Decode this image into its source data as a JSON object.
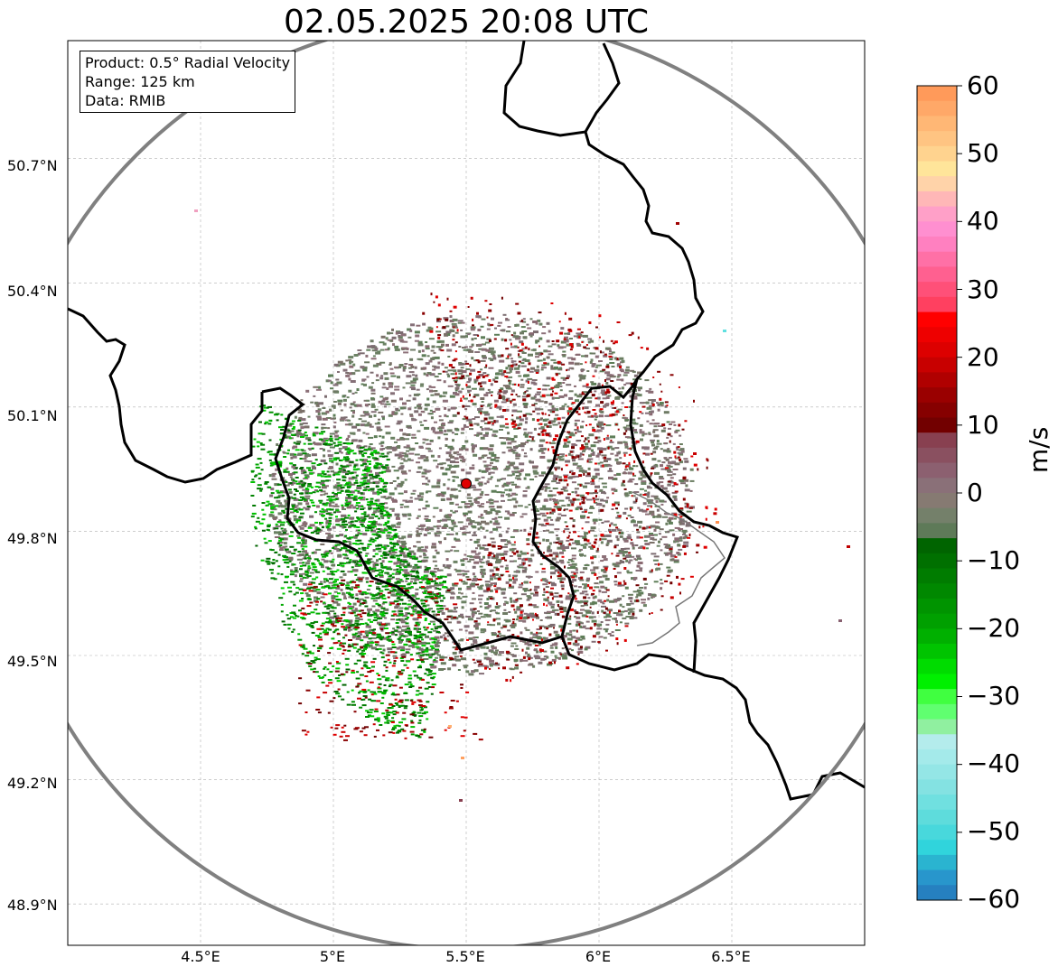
{
  "title": "02.05.2025 20:08 UTC",
  "info": {
    "product": "Product: 0.5° Radial Velocity",
    "range": "Range: 125 km",
    "data": "Data: RMIB"
  },
  "map": {
    "lat_ticks": [
      "50.7°N",
      "50.4°N",
      "50.1°N",
      "49.8°N",
      "49.5°N",
      "49.2°N",
      "48.9°N"
    ],
    "lon_ticks": [
      "4.5°E",
      "5°E",
      "5.5°E",
      "6°E",
      "6.5°E"
    ],
    "radar_site": {
      "lon": 5.5,
      "lat": 49.915
    },
    "radar_range_km": 125,
    "extent": {
      "lon_min": 4.0,
      "lon_max": 7.0,
      "lat_min": 48.8,
      "lat_max": 50.985
    }
  },
  "colorbar": {
    "unit": "m/s",
    "tick_labels": [
      "60",
      "50",
      "40",
      "30",
      "20",
      "10",
      "0",
      "−10",
      "−20",
      "−30",
      "−40",
      "−50",
      "−60"
    ],
    "min": -60,
    "max": 60,
    "colors_top_to_bottom": [
      "#ff9a5a",
      "#ffa868",
      "#ffb775",
      "#ffc482",
      "#ffd38f",
      "#ffe59a",
      "#ffd3a9",
      "#ffb7b7",
      "#ffa0c8",
      "#ff8fd0",
      "#ff80c0",
      "#ff70a6",
      "#ff6090",
      "#ff5078",
      "#ff4060",
      "#ff0000",
      "#ee0000",
      "#dd0000",
      "#c80000",
      "#b00000",
      "#9a0000",
      "#860000",
      "#720000",
      "#884050",
      "#8a5060",
      "#8c6070",
      "#8a7078",
      "#867a72",
      "#74806a",
      "#5e7a58",
      "#006400",
      "#007000",
      "#007c00",
      "#008800",
      "#009400",
      "#00a000",
      "#00b000",
      "#00c400",
      "#00dc00",
      "#00f000",
      "#40ff40",
      "#60ff70",
      "#90f0a0",
      "#b4ecec",
      "#a4eaea",
      "#94e6e6",
      "#84e2e2",
      "#70e0e0",
      "#5edcdc",
      "#48d8dc",
      "#30d4dc",
      "#2ab4d0",
      "#2896cc",
      "#2680c0"
    ]
  }
}
